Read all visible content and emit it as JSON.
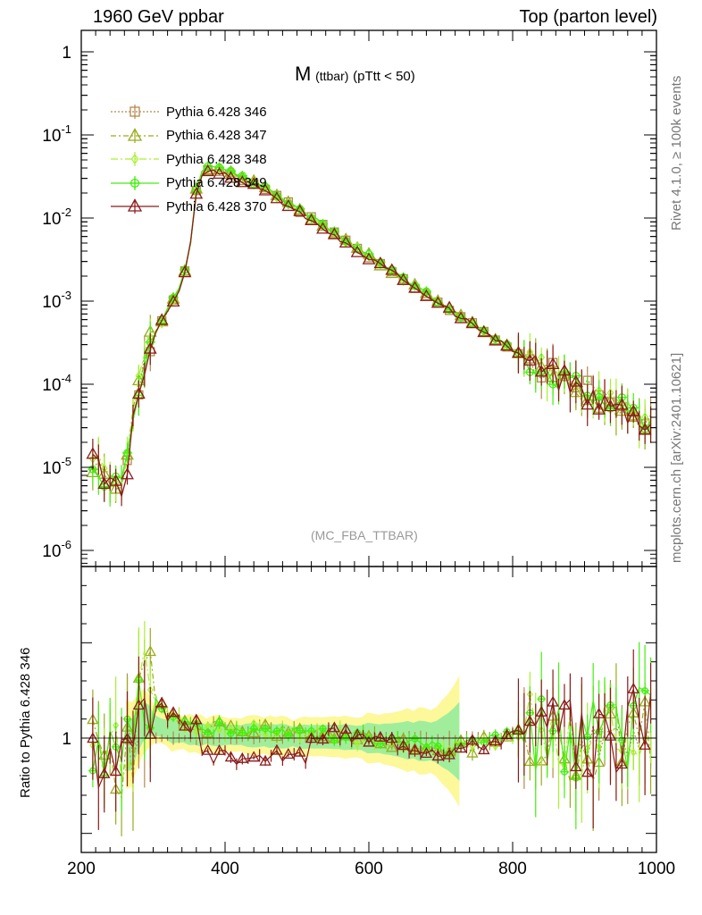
{
  "header": {
    "left": "1960 GeV ppbar",
    "right": "Top (parton level)"
  },
  "side_labels": {
    "rivet": "Rivet 4.1.0, ≥ 100k events",
    "mcplots": "mcplots.cern.ch [arXiv:2401.10621]"
  },
  "plot_title": {
    "main": "M",
    "sub": "(ttbar)",
    "rest": "(pTtt < 50)"
  },
  "watermark": "(MC_FBA_TTBAR)",
  "ratio_ylabel": "Ratio to Pythia 6.428 346",
  "colors": {
    "s346": "#b5884e",
    "s347": "#9aab1c",
    "s348": "#a6f02e",
    "s349": "#44ee10",
    "s370": "#8b1a1a",
    "band_yellow": "#fdf89a",
    "band_green": "#8fec9c"
  },
  "legend": [
    {
      "label": "Pythia 6.428 346",
      "color": "#b5884e",
      "marker": "square",
      "dash": "2,2"
    },
    {
      "label": "Pythia 6.428 347",
      "color": "#9aab1c",
      "marker": "triangle",
      "dash": "6,3,2,3"
    },
    {
      "label": "Pythia 6.428 348",
      "color": "#a6f02e",
      "marker": "diamond",
      "dash": "8,3,2,3"
    },
    {
      "label": "Pythia 6.428 349",
      "color": "#44ee10",
      "marker": "cross",
      "dash": ""
    },
    {
      "label": "Pythia 6.428 370",
      "color": "#8b1a1a",
      "marker": "triangle",
      "dash": ""
    }
  ],
  "chart_data": {
    "type": "line",
    "title": "M (ttbar) (pTtt < 50)",
    "xlabel": "",
    "ylabel": "",
    "xlim": [
      200,
      1000
    ],
    "ylog": true,
    "ylim": [
      6e-07,
      2
    ],
    "main_ytick_labels": [
      "1",
      "10^-1",
      "10^-2",
      "10^-3",
      "10^-4",
      "10^-5",
      "10^-6"
    ],
    "xticks": [
      200,
      400,
      600,
      800,
      1000
    ],
    "ratio": {
      "ylim": [
        0.4,
        1.9
      ],
      "ytick_labels": [
        "1"
      ],
      "ylabel": "Ratio to Pythia 6.428 346"
    },
    "shape_points": [
      [
        220,
        1.1e-05
      ],
      [
        240,
        6e-06
      ],
      [
        260,
        5e-06
      ],
      [
        270,
        3.5e-05
      ],
      [
        280,
        9e-05
      ],
      [
        290,
        0.00022
      ],
      [
        300,
        0.00038
      ],
      [
        310,
        0.00052
      ],
      [
        320,
        0.00075
      ],
      [
        330,
        0.0011
      ],
      [
        340,
        0.0016
      ],
      [
        350,
        0.0035
      ],
      [
        360,
        0.022
      ],
      [
        370,
        0.038
      ],
      [
        380,
        0.039
      ],
      [
        390,
        0.038
      ],
      [
        400,
        0.036
      ],
      [
        420,
        0.031
      ],
      [
        440,
        0.026
      ],
      [
        460,
        0.021
      ],
      [
        480,
        0.0165
      ],
      [
        500,
        0.013
      ],
      [
        520,
        0.0099
      ],
      [
        540,
        0.0077
      ],
      [
        560,
        0.0058
      ],
      [
        580,
        0.0045
      ],
      [
        600,
        0.0034
      ],
      [
        620,
        0.0026
      ],
      [
        640,
        0.002
      ],
      [
        660,
        0.00155
      ],
      [
        680,
        0.0012
      ],
      [
        700,
        0.00092
      ],
      [
        720,
        0.0007
      ],
      [
        740,
        0.00055
      ],
      [
        760,
        0.00042
      ],
      [
        780,
        0.00033
      ],
      [
        800,
        0.00026
      ],
      [
        820,
        0.0002
      ],
      [
        840,
        0.00016
      ],
      [
        860,
        0.000125
      ],
      [
        880,
        0.0001
      ],
      [
        900,
        8.2e-05
      ],
      [
        920,
        6.8e-05
      ],
      [
        940,
        5.6e-05
      ],
      [
        960,
        4.7e-05
      ],
      [
        980,
        4e-05
      ],
      [
        1000,
        3.4e-05
      ]
    ],
    "series": [
      {
        "name": "Pythia 6.428 346",
        "color": "#b5884e",
        "marker": "square",
        "dash": "2,2",
        "scale": 1.0,
        "seed": 11,
        "markerEvery": 2
      },
      {
        "name": "Pythia 6.428 347",
        "color": "#9aab1c",
        "marker": "triangle",
        "dash": "6,3,2,3",
        "scale": 1.02,
        "seed": 23,
        "markerEvery": 2
      },
      {
        "name": "Pythia 6.428 348",
        "color": "#a6f02e",
        "marker": "diamond",
        "dash": "8,3,2,3",
        "scale": 1.01,
        "seed": 37,
        "markerEvery": 2
      },
      {
        "name": "Pythia 6.428 349",
        "color": "#44ee10",
        "marker": "cross",
        "dash": "",
        "scale": 1.03,
        "seed": 51,
        "markerEvery": 2
      },
      {
        "name": "Pythia 6.428 370",
        "color": "#8b1a1a",
        "marker": "triangle",
        "dash": "",
        "scale": 0.93,
        "seed": 67,
        "markerEvery": 2
      }
    ],
    "ratio_trend": [
      [
        270,
        0.9
      ],
      [
        280,
        1.15
      ],
      [
        290,
        1.3
      ],
      [
        300,
        1.2
      ],
      [
        320,
        1.12
      ],
      [
        340,
        1.08
      ],
      [
        360,
        1.06
      ],
      [
        400,
        1.05
      ],
      [
        450,
        1.04
      ],
      [
        500,
        1.02
      ],
      [
        550,
        1.02
      ],
      [
        600,
        1.0
      ],
      [
        650,
        0.97
      ],
      [
        700,
        0.94
      ],
      [
        750,
        0.96
      ],
      [
        800,
        1.02
      ],
      [
        850,
        1.0
      ],
      [
        900,
        0.98
      ],
      [
        950,
        1.05
      ],
      [
        1000,
        1.1
      ]
    ]
  }
}
